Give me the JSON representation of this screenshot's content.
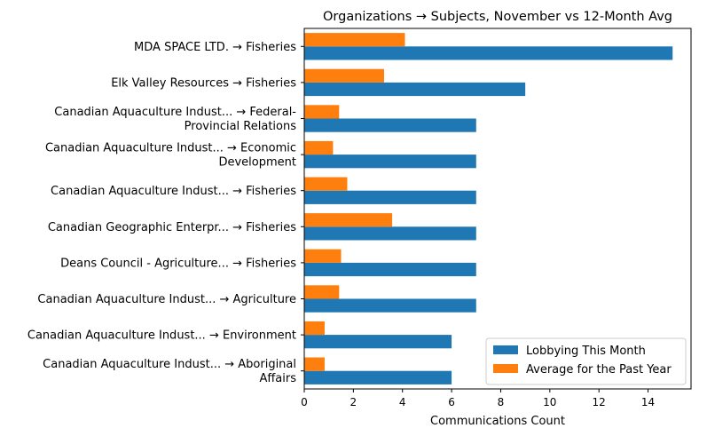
{
  "chart_data": {
    "type": "bar",
    "orientation": "horizontal",
    "title": "Organizations → Subjects, November vs 12-Month Avg",
    "xlabel": "Communications Count",
    "ylabel": "",
    "xlim": [
      0,
      15.75
    ],
    "xticks": [
      0,
      2,
      4,
      6,
      8,
      10,
      12,
      14
    ],
    "grid": false,
    "legend_position": "lower right",
    "categories": [
      [
        "MDA SPACE LTD. → Fisheries"
      ],
      [
        "Elk Valley Resources → Fisheries"
      ],
      [
        "Canadian Aquaculture Indust... → Federal-",
        "Provincial Relations"
      ],
      [
        "Canadian Aquaculture Indust... → Economic",
        "Development"
      ],
      [
        "Canadian Aquaculture Indust... → Fisheries"
      ],
      [
        "Canadian Geographic Enterpr... → Fisheries"
      ],
      [
        "Deans Council - Agriculture... → Fisheries"
      ],
      [
        "Canadian Aquaculture Indust... → Agriculture"
      ],
      [
        "Canadian Aquaculture Indust... → Environment"
      ],
      [
        "Canadian Aquaculture Indust... → Aboriginal",
        "Affairs"
      ]
    ],
    "series": [
      {
        "name": "Lobbying This Month",
        "color": "#1f77b4",
        "values": [
          15,
          9,
          7,
          7,
          7,
          7,
          7,
          7,
          6,
          6
        ]
      },
      {
        "name": "Average for the Past Year",
        "color": "#ff7f0e",
        "values": [
          4.1,
          3.25,
          1.42,
          1.17,
          1.75,
          3.58,
          1.5,
          1.42,
          0.83,
          0.83
        ]
      }
    ]
  }
}
